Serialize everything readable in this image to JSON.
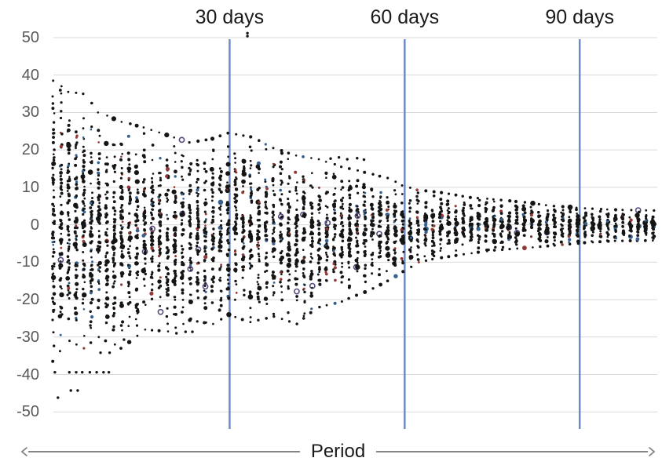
{
  "chart_data": {
    "type": "scatter",
    "title": "",
    "xlabel": "Period",
    "ylabel": "",
    "x_axis_style": "double-arrow-line",
    "grid": "horizontal",
    "ylim": [
      -50,
      50
    ],
    "y_ticks": [
      50,
      40,
      30,
      20,
      10,
      0,
      -10,
      -20,
      -30,
      -40,
      -50
    ],
    "annotations": [
      {
        "label": "30 days",
        "day": 30
      },
      {
        "label": "60 days",
        "day": 60
      },
      {
        "label": "90 days",
        "day": 90
      }
    ],
    "colors": {
      "dot_black": "#151515",
      "dot_blue": "#36618f",
      "dot_red": "#943836",
      "dot_purple_ring": "#5a4b7e",
      "annotation_line": "#6b8dc4",
      "gridline": "#d9d9d9",
      "tick_label": "#595959",
      "axis_arrow": "#848484",
      "label_text": "#1a1a1a"
    },
    "series": [
      {
        "name": "observations",
        "marker": "dot",
        "columns": 80,
        "color_mix": {
          "black": 0.911,
          "blue": 0.048,
          "red": 0.037,
          "purple_ring": 0.004
        },
        "envelope": [
          {
            "t": 0,
            "top": 38.5,
            "bot": -36.5
          },
          {
            "t": 2,
            "top": 35.5,
            "bot": -31.0
          },
          {
            "t": 4,
            "top": 35.0,
            "bot": -33.0
          },
          {
            "t": 6,
            "top": 30.0,
            "bot": -30.0
          },
          {
            "t": 9,
            "top": 27.5,
            "bot": -33.0
          },
          {
            "t": 12,
            "top": 26.0,
            "bot": -28.0
          },
          {
            "t": 15,
            "top": 24.0,
            "bot": -28.5
          },
          {
            "t": 18,
            "top": 22.0,
            "bot": -25.5
          },
          {
            "t": 21,
            "top": 23.0,
            "bot": -26.5
          },
          {
            "t": 23,
            "top": 24.5,
            "bot": -24.0
          },
          {
            "t": 26,
            "top": 23.5,
            "bot": -26.0
          },
          {
            "t": 29,
            "top": 20.5,
            "bot": -24.5
          },
          {
            "t": 32,
            "top": 18.5,
            "bot": -26.5
          },
          {
            "t": 35,
            "top": 17.5,
            "bot": -22.0
          },
          {
            "t": 38,
            "top": 15.5,
            "bot": -20.5
          },
          {
            "t": 41,
            "top": 14.0,
            "bot": -18.0
          },
          {
            "t": 44,
            "top": 12.5,
            "bot": -15.0
          },
          {
            "t": 46,
            "top": 10.5,
            "bot": -12.5
          },
          {
            "t": 48,
            "top": 9.3,
            "bot": -10.0
          },
          {
            "t": 51,
            "top": 8.6,
            "bot": -8.8
          },
          {
            "t": 55,
            "top": 7.3,
            "bot": -7.6
          },
          {
            "t": 58,
            "top": 6.8,
            "bot": -6.8
          },
          {
            "t": 62,
            "top": 6.0,
            "bot": -6.2
          },
          {
            "t": 66,
            "top": 5.0,
            "bot": -5.5
          },
          {
            "t": 70,
            "top": 4.4,
            "bot": -4.8
          },
          {
            "t": 74,
            "top": 4.0,
            "bot": -4.3
          },
          {
            "t": 79,
            "top": 3.8,
            "bot": -4.2
          }
        ],
        "outliers": [
          {
            "t": 0.2,
            "v": -39.4
          },
          {
            "t": 2.1,
            "v": -39.4
          },
          {
            "t": 3.0,
            "v": -39.4
          },
          {
            "t": 3.8,
            "v": -39.4
          },
          {
            "t": 4.8,
            "v": -39.4
          },
          {
            "t": 5.7,
            "v": -39.4
          },
          {
            "t": 6.6,
            "v": -39.4
          },
          {
            "t": 7.3,
            "v": -39.4
          },
          {
            "t": 0.6,
            "v": -46.2
          },
          {
            "t": 2.3,
            "v": -44.3
          },
          {
            "t": 3.2,
            "v": -44.3
          },
          {
            "t": 6.2,
            "v": -34.2
          },
          {
            "t": 7.4,
            "v": -34.2
          },
          {
            "t": 9.3,
            "v": -30.7
          },
          {
            "t": 16.2,
            "v": -29.0
          },
          {
            "t": 17.4,
            "v": -28.6
          },
          {
            "t": 18.3,
            "v": -28.6
          },
          {
            "t": 25.55,
            "v": 50.4
          },
          {
            "t": 25.55,
            "v": 51.2
          },
          {
            "t": 36.5,
            "v": 17.7
          },
          {
            "t": 37.6,
            "v": 18.0
          },
          {
            "t": 38.7,
            "v": 17.5
          },
          {
            "t": 40.0,
            "v": 17.8
          },
          {
            "t": 40.9,
            "v": 17.4
          },
          {
            "t": 57.3,
            "v": -6.7
          },
          {
            "t": 58.2,
            "v": -6.0
          },
          {
            "t": 59.2,
            "v": -6.0
          }
        ]
      }
    ]
  }
}
